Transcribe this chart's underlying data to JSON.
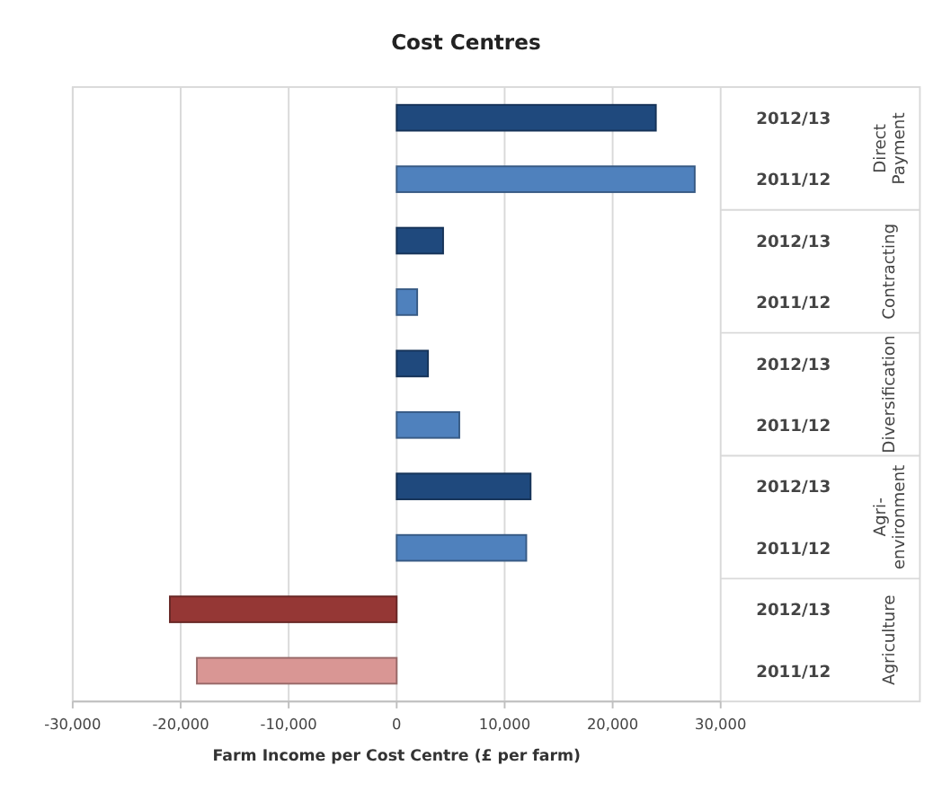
{
  "chart_data": {
    "type": "bar",
    "orientation": "horizontal",
    "title": "Cost Centres",
    "xlabel": "Farm Income per Cost Centre (£ per farm)",
    "categories": [
      "2012/13",
      "2011/12",
      "2012/13",
      "2011/12",
      "2012/13",
      "2011/12",
      "2012/13",
      "2011/12",
      "2012/13",
      "2011/12"
    ],
    "values": [
      24000,
      27600,
      4300,
      1900,
      2900,
      5800,
      12400,
      12000,
      -21000,
      -18500
    ],
    "colors": [
      "#1f497d",
      "#4f81bd",
      "#1f497d",
      "#4f81bd",
      "#1f497d",
      "#4f81bd",
      "#1f497d",
      "#4f81bd",
      "#953735",
      "#d99694"
    ],
    "annotations": [
      "Direct\nPayment",
      "Contracting",
      "Diversification",
      "Agri-\nenvironment",
      "Agriculture"
    ],
    "xlim": [
      -30000,
      30000
    ],
    "xticks": [
      {
        "value": -30000,
        "label": "-30,000"
      },
      {
        "value": -20000,
        "label": "-20,000"
      },
      {
        "value": -10000,
        "label": "-10,000"
      },
      0,
      {
        "value": 10000,
        "label": "10,000"
      },
      {
        "value": 20000,
        "label": "20,000"
      },
      {
        "value": 30000,
        "label": "30,000"
      }
    ],
    "grid": "x"
  }
}
